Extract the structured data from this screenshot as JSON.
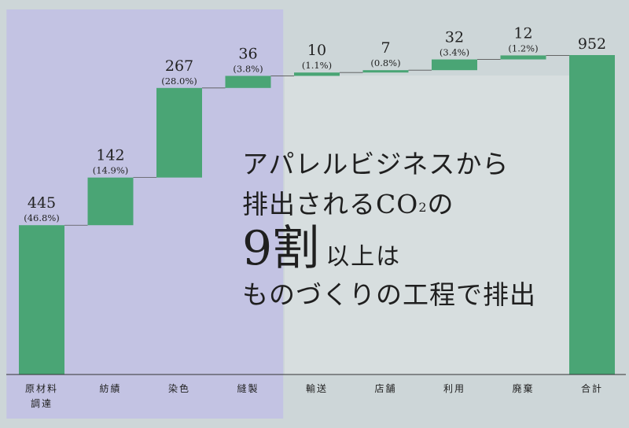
{
  "chart_data": {
    "type": "waterfall",
    "categories": [
      "原材料調達",
      "紡績",
      "染色",
      "縫製",
      "輸送",
      "店舗",
      "利用",
      "廃棄",
      "合計"
    ],
    "category_lines": [
      [
        "原材料",
        "調達"
      ],
      [
        "紡績"
      ],
      [
        "染色"
      ],
      [
        "縫製"
      ],
      [
        "輸送"
      ],
      [
        "店舗"
      ],
      [
        "利用"
      ],
      [
        "廃棄"
      ],
      [
        "合計"
      ]
    ],
    "values": [
      445,
      142,
      267,
      36,
      10,
      7,
      32,
      12,
      952
    ],
    "value_labels": [
      "445",
      "142",
      "267",
      "36",
      "10",
      "7",
      "32",
      "12",
      "952"
    ],
    "percent_labels": [
      "(46.8%)",
      "(14.9%)",
      "(28.0%)",
      "(3.8%)",
      "(1.1%)",
      "(0.8%)",
      "(3.4%)",
      "(1.2%)",
      ""
    ],
    "ylim": [
      0,
      952
    ],
    "total_index": 8,
    "highlighted_range": [
      "原材料調達",
      "縫製"
    ],
    "colors": {
      "bar": "#4aa575",
      "highlight_band": "#c3c3e3",
      "hatch_region": "#d7dedf",
      "background": "#cdd6d8",
      "connector": "#555555",
      "axis": "#333333",
      "text": "#222222"
    }
  },
  "headline": {
    "line1": "アパレルビジネスから",
    "line2_main": "排出されるCO",
    "line2_sub": "2",
    "line2_end": "の",
    "line3_big": "9割",
    "line3_rest": "以上は",
    "line4": "ものづくりの工程で排出"
  }
}
